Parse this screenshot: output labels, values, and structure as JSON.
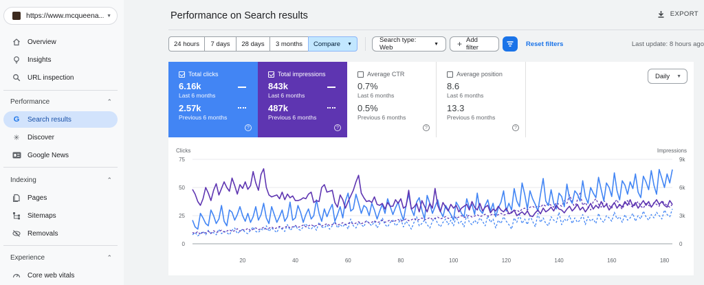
{
  "sidebar": {
    "property": "https://www.mcqueena...",
    "items": [
      {
        "label": "Overview",
        "icon": "home-icon"
      },
      {
        "label": "Insights",
        "icon": "lightbulb-icon"
      },
      {
        "label": "URL inspection",
        "icon": "search-icon"
      }
    ],
    "performance": {
      "section": "Performance",
      "items": [
        {
          "label": "Search results",
          "icon": "google-g-icon",
          "active": true
        },
        {
          "label": "Discover",
          "icon": "asterisk-icon"
        },
        {
          "label": "Google News",
          "icon": "gn-icon"
        }
      ]
    },
    "indexing": {
      "section": "Indexing",
      "items": [
        {
          "label": "Pages",
          "icon": "pages-icon"
        },
        {
          "label": "Sitemaps",
          "icon": "sitemap-icon"
        },
        {
          "label": "Removals",
          "icon": "removals-icon"
        }
      ]
    },
    "experience": {
      "section": "Experience",
      "items": [
        {
          "label": "Core web vitals",
          "icon": "gauge-icon"
        }
      ]
    }
  },
  "header": {
    "title": "Performance on Search results",
    "export": "EXPORT"
  },
  "filters": {
    "ranges": [
      "24 hours",
      "7 days",
      "28 days",
      "3 months"
    ],
    "compare": "Compare",
    "search_type": "Search type: Web",
    "add_filter": "Add filter",
    "reset": "Reset filters",
    "last_update": "Last update: 8 hours ago"
  },
  "metrics": {
    "clicks": {
      "label": "Total clicks",
      "value": "6.16k",
      "period": "Last 6 months",
      "prev_value": "2.57k",
      "prev_period": "Previous 6 months"
    },
    "impressions": {
      "label": "Total impressions",
      "value": "843k",
      "period": "Last 6 months",
      "prev_value": "487k",
      "prev_period": "Previous 6 months"
    },
    "ctr": {
      "label": "Average CTR",
      "value": "0.7%",
      "period": "Last 6 months",
      "prev_value": "0.5%",
      "prev_period": "Previous 6 months"
    },
    "position": {
      "label": "Average position",
      "value": "8.6",
      "period": "Last 6 months",
      "prev_value": "13.3",
      "prev_period": "Previous 6 months"
    }
  },
  "granularity": "Daily",
  "colors": {
    "clicks": "#4285f4",
    "impressions": "#5e35b1",
    "active_nav": "#d2e3fc",
    "accent": "#1a73e8"
  },
  "chart_data": {
    "type": "line",
    "ylabel_left": "Clicks",
    "ylabel_right": "Impressions",
    "ylim_left": [
      0,
      75
    ],
    "ylim_right": [
      0,
      9000
    ],
    "yticks_left": [
      0,
      25,
      50,
      75
    ],
    "yticks_right": [
      "0",
      "3k",
      "6k",
      "9k"
    ],
    "xlim": [
      1,
      183
    ],
    "xticks": [
      20,
      40,
      60,
      80,
      100,
      120,
      140,
      160,
      180
    ],
    "grid": true,
    "series": [
      {
        "key": "clicks_current",
        "axis": "left",
        "color": "#4285f4",
        "dashed": false,
        "values": [
          21,
          15,
          13,
          27,
          23,
          18,
          16,
          30,
          25,
          18,
          22,
          34,
          20,
          16,
          30,
          28,
          21,
          26,
          33,
          25,
          20,
          27,
          19,
          24,
          33,
          21,
          26,
          36,
          23,
          18,
          33,
          26,
          19,
          24,
          30,
          20,
          24,
          37,
          21,
          23,
          34,
          28,
          19,
          26,
          31,
          22,
          25,
          39,
          27,
          20,
          31,
          24,
          30,
          35,
          20,
          26,
          33,
          23,
          38,
          45,
          29,
          31,
          44,
          36,
          27,
          34,
          32,
          25,
          36,
          30,
          22,
          29,
          35,
          27,
          40,
          33,
          26,
          32,
          37,
          28,
          21,
          34,
          44,
          31,
          25,
          37,
          41,
          30,
          22,
          43,
          36,
          27,
          33,
          39,
          29,
          24,
          34,
          30,
          26,
          21,
          37,
          33,
          27,
          24,
          40,
          32,
          35,
          26,
          45,
          30,
          27,
          34,
          39,
          29,
          36,
          24,
          32,
          37,
          47,
          29,
          36,
          30,
          49,
          38,
          33,
          54,
          44,
          31,
          47,
          40,
          35,
          29,
          44,
          58,
          38,
          34,
          48,
          36,
          31,
          45,
          42,
          33,
          53,
          40,
          36,
          47,
          44,
          38,
          56,
          42,
          36,
          50,
          45,
          41,
          59,
          48,
          38,
          54,
          50,
          42,
          63,
          47,
          39,
          56,
          52,
          44,
          55,
          49,
          62,
          46,
          41,
          60,
          55,
          48,
          65,
          52,
          44,
          66,
          58,
          50,
          62,
          54,
          66
        ]
      },
      {
        "key": "impressions_current",
        "axis": "right",
        "color": "#5e35b1",
        "dashed": false,
        "values": [
          5800,
          5300,
          4500,
          4100,
          4800,
          6000,
          5400,
          4600,
          5700,
          6400,
          5200,
          5900,
          6600,
          6000,
          5600,
          7000,
          6200,
          5300,
          6300,
          5900,
          6600,
          5800,
          6200,
          7700,
          6500,
          5700,
          7400,
          8000,
          6000,
          5200,
          5000,
          5100,
          5200,
          4800,
          5500,
          4700,
          5300,
          4900,
          5100,
          4600,
          4600,
          4700,
          4900,
          4800,
          5300,
          5500,
          4400,
          4600,
          4500,
          6000,
          6300,
          5500,
          5600,
          5700,
          4400,
          3900,
          5200,
          4700,
          3800,
          4500,
          5100,
          5700,
          6600,
          7300,
          5400,
          4900,
          4500,
          4600,
          4400,
          5000,
          4200,
          4100,
          4300,
          3700,
          4400,
          4000,
          4000,
          4700,
          4300,
          4800,
          3800,
          4000,
          5700,
          3700,
          3900,
          4300,
          3400,
          4600,
          4000,
          3400,
          4300,
          3800,
          5900,
          4100,
          3400,
          4400,
          3900,
          3500,
          4200,
          3800,
          4100,
          3400,
          3800,
          4000,
          4200,
          3600,
          4500,
          3900,
          3600,
          4300,
          3500,
          3900,
          4100,
          3300,
          3700,
          3500,
          4000,
          3600,
          3400,
          3800,
          3200,
          3300,
          3600,
          3000,
          3200,
          3400,
          3100,
          3500,
          3000,
          2900,
          3300,
          3600,
          3200,
          3800,
          3400,
          3600,
          3900,
          3500,
          4100,
          3700,
          3600,
          3300,
          3700,
          4000,
          3500,
          3800,
          4200,
          3600,
          3900,
          3400,
          3800,
          4300,
          3700,
          4100,
          3800,
          4500,
          3900,
          4200,
          3600,
          4000,
          4400,
          3800,
          4200,
          3900,
          4500,
          4100,
          4700,
          4000,
          4400,
          3800,
          4200,
          4600,
          4100,
          4500,
          3900,
          4300,
          4700,
          4200,
          4500,
          4100,
          3900,
          4600,
          4200
        ]
      },
      {
        "key": "clicks_previous",
        "axis": "left",
        "color": "#4285f4",
        "dashed": true,
        "values": [
          8,
          10,
          7,
          9,
          11,
          8,
          12,
          9,
          10,
          8,
          13,
          9,
          11,
          10,
          8,
          12,
          14,
          9,
          11,
          13,
          10,
          9,
          12,
          15,
          11,
          10,
          13,
          12,
          16,
          11,
          14,
          12,
          10,
          15,
          13,
          11,
          17,
          12,
          14,
          16,
          13,
          12,
          15,
          18,
          14,
          13,
          16,
          12,
          19,
          15,
          14,
          17,
          13,
          16,
          20,
          14,
          17,
          15,
          18,
          13,
          22,
          16,
          14,
          19,
          17,
          15,
          21,
          18,
          16,
          20,
          14,
          18,
          23,
          17,
          15,
          19,
          21,
          16,
          18,
          22,
          15,
          20,
          17,
          13,
          19,
          24,
          16,
          18,
          21,
          17,
          14,
          20,
          23,
          18,
          15,
          19,
          22,
          17,
          21,
          16,
          24,
          18,
          20,
          15,
          26,
          19,
          17,
          21,
          18,
          23,
          20,
          16,
          25,
          19,
          22,
          14,
          21,
          18,
          24,
          20,
          17,
          13,
          23,
          19,
          26,
          18,
          22,
          17,
          25,
          20,
          15,
          27,
          19,
          23,
          18,
          16,
          24,
          21,
          19,
          28,
          17,
          22,
          20,
          25,
          18,
          23,
          19,
          21,
          26,
          17,
          24,
          20,
          22,
          18,
          27,
          21,
          19,
          25,
          23,
          20,
          28,
          22,
          24,
          19,
          26,
          21,
          23,
          27,
          20,
          25,
          22,
          29,
          24,
          21,
          26,
          23,
          28,
          25,
          22,
          30,
          26,
          24,
          31
        ]
      },
      {
        "key": "impressions_previous",
        "axis": "right",
        "color": "#5e35b1",
        "dashed": true,
        "values": [
          1200,
          1100,
          1300,
          1000,
          1250,
          1150,
          1350,
          1100,
          1400,
          1200,
          1300,
          1450,
          1250,
          1350,
          1500,
          1300,
          1400,
          1600,
          1350,
          1500,
          1450,
          1650,
          1400,
          1550,
          1700,
          1500,
          1600,
          1750,
          1550,
          1650,
          1800,
          1600,
          1700,
          1850,
          1650,
          1750,
          1900,
          1700,
          1800,
          1950,
          1750,
          1850,
          2000,
          1800,
          1900,
          2050,
          1850,
          1950,
          2100,
          1900,
          2000,
          2150,
          1950,
          2050,
          2200,
          2000,
          2100,
          2250,
          2050,
          2150,
          2300,
          2100,
          2200,
          2350,
          2150,
          2250,
          2400,
          2200,
          2300,
          2450,
          2250,
          2350,
          2500,
          2300,
          2400,
          2550,
          2350,
          2450,
          2600,
          2400,
          2500,
          2650,
          2450,
          2550,
          2700,
          2500,
          2600,
          2750,
          2550,
          2650,
          2800,
          2600,
          2700,
          2850,
          2650,
          2750,
          2900,
          2700,
          2800,
          2950,
          2750,
          2850,
          3000,
          2800,
          2900,
          3050,
          2850,
          2950,
          3100,
          2900,
          3000,
          3150,
          2950,
          3050,
          3200,
          3000,
          3100,
          3250,
          3050,
          3150,
          3300,
          3400,
          3500,
          3600,
          3400,
          3700,
          3800,
          3600,
          3900,
          4000,
          3800,
          4100,
          3900,
          4200,
          4000,
          4300,
          4100,
          3900,
          4400,
          4200,
          4000,
          4600,
          4300,
          5200,
          4500,
          3800,
          4700,
          5400,
          4100,
          4400,
          3900,
          3600,
          4500,
          4800,
          4200,
          3900,
          4600,
          4300,
          4100,
          3800,
          4400,
          4700,
          4000,
          3700,
          4300,
          4600,
          4100,
          3900,
          4200,
          4500,
          4000,
          3800,
          4300,
          4100,
          3900,
          4400,
          4200,
          4000,
          4600,
          4300,
          4100,
          3900,
          4200
        ]
      }
    ]
  }
}
